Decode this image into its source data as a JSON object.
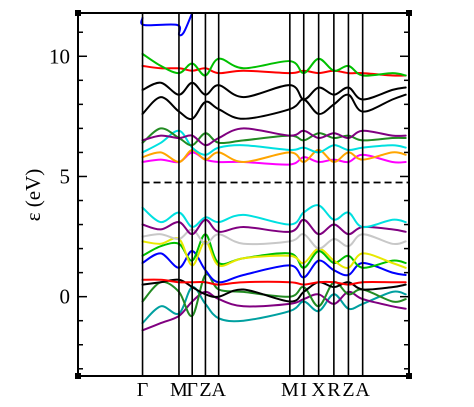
{
  "chart_data": {
    "type": "line",
    "title": "",
    "ylabel": "ε (eV)",
    "xlabel": "",
    "ylim": [
      -3.3,
      11.8
    ],
    "xlim": [
      0,
      1
    ],
    "yticks": [
      0,
      5,
      10
    ],
    "ytick_labels": [
      "0",
      "5",
      "10"
    ],
    "k_points": [
      {
        "label": "Γ",
        "x": 0.195
      },
      {
        "label": "M",
        "x": 0.305
      },
      {
        "label": "Γ",
        "x": 0.345
      },
      {
        "label": "Z",
        "x": 0.385
      },
      {
        "label": "A",
        "x": 0.425
      },
      {
        "label": "M",
        "x": 0.64
      },
      {
        "label": "I",
        "x": 0.682
      },
      {
        "label": "X",
        "x": 0.727
      },
      {
        "label": "R",
        "x": 0.773
      },
      {
        "label": "Z",
        "x": 0.817
      },
      {
        "label": "A",
        "x": 0.86
      }
    ],
    "fermi_level": 4.75,
    "grid": false,
    "series": [
      {
        "color": "#00a0a0",
        "x": [
          0.195,
          0.25,
          0.305,
          0.345,
          0.385,
          0.425,
          0.5,
          0.64,
          0.682,
          0.727,
          0.773,
          0.817,
          0.86,
          0.95,
          0.99
        ],
        "y": [
          -1.1,
          -0.4,
          -0.7,
          0.4,
          -0.3,
          -0.9,
          -1.0,
          -0.6,
          -0.2,
          -0.6,
          0.1,
          -0.5,
          -0.3,
          0.2,
          0.1
        ]
      },
      {
        "color": "#800080",
        "x": [
          0.195,
          0.25,
          0.305,
          0.345,
          0.385,
          0.425,
          0.5,
          0.64,
          0.682,
          0.727,
          0.773,
          0.817,
          0.86,
          0.95,
          0.99
        ],
        "y": [
          -1.4,
          -1.1,
          -0.8,
          -0.2,
          0.2,
          -0.1,
          -0.4,
          -0.3,
          -0.1,
          0.1,
          -0.3,
          0.2,
          -0.1,
          -0.4,
          -0.5
        ]
      },
      {
        "color": "#228b22",
        "x": [
          0.195,
          0.25,
          0.305,
          0.345,
          0.385,
          0.425,
          0.5,
          0.64,
          0.682,
          0.727,
          0.773,
          0.817,
          0.86,
          0.95,
          0.99
        ],
        "y": [
          -0.2,
          0.6,
          0.2,
          -0.8,
          0.9,
          0.3,
          0.2,
          0.0,
          0.4,
          -0.4,
          0.6,
          0.1,
          0.3,
          -0.2,
          -0.1
        ]
      },
      {
        "color": "#000000",
        "x": [
          0.195,
          0.25,
          0.305,
          0.345,
          0.385,
          0.425,
          0.5,
          0.64,
          0.682,
          0.727,
          0.773,
          0.817,
          0.86,
          0.95,
          0.99
        ],
        "y": [
          0.5,
          0.6,
          0.7,
          0.4,
          0.1,
          0.0,
          0.3,
          -0.2,
          0.2,
          0.6,
          0.4,
          0.6,
          0.3,
          0.4,
          0.5
        ]
      },
      {
        "color": "#ff0000",
        "x": [
          0.195,
          0.25,
          0.305,
          0.345,
          0.385,
          0.425,
          0.5,
          0.64,
          0.682,
          0.727,
          0.773,
          0.817,
          0.86,
          0.95,
          0.99
        ],
        "y": [
          0.7,
          0.7,
          0.6,
          0.6,
          0.6,
          0.5,
          0.6,
          0.6,
          0.5,
          0.6,
          0.6,
          0.5,
          0.6,
          0.6,
          0.6
        ]
      },
      {
        "color": "#0000ff",
        "x": [
          0.195,
          0.25,
          0.305,
          0.345,
          0.385,
          0.425,
          0.5,
          0.64,
          0.682,
          0.727,
          0.773,
          0.817,
          0.86,
          0.95,
          0.99
        ],
        "y": [
          1.4,
          1.8,
          1.2,
          1.9,
          1.1,
          0.6,
          0.9,
          1.3,
          0.8,
          1.5,
          1.1,
          0.9,
          1.4,
          1.0,
          0.9
        ]
      },
      {
        "color": "#00c000",
        "x": [
          0.195,
          0.25,
          0.305,
          0.345,
          0.385,
          0.425,
          0.5,
          0.64,
          0.682,
          0.727,
          0.773,
          0.817,
          0.86,
          0.95,
          0.99
        ],
        "y": [
          1.7,
          2.1,
          2.2,
          1.5,
          2.6,
          1.4,
          1.6,
          1.8,
          1.2,
          1.9,
          1.4,
          1.7,
          1.2,
          1.5,
          1.4
        ]
      },
      {
        "color": "#e8e800",
        "x": [
          0.195,
          0.25,
          0.305,
          0.345,
          0.385,
          0.425,
          0.5,
          0.64,
          0.682,
          0.727,
          0.773,
          0.817,
          0.86,
          0.95,
          0.99
        ],
        "y": [
          2.3,
          2.2,
          2.4,
          1.3,
          2.3,
          1.3,
          1.6,
          1.7,
          1.4,
          2.0,
          1.5,
          1.2,
          1.8,
          1.4,
          1.2
        ]
      },
      {
        "color": "#c8c8c8",
        "x": [
          0.195,
          0.25,
          0.305,
          0.345,
          0.385,
          0.425,
          0.5,
          0.64,
          0.682,
          0.727,
          0.773,
          0.817,
          0.86,
          0.95,
          0.99
        ],
        "y": [
          2.5,
          2.6,
          2.4,
          2.8,
          2.2,
          2.6,
          2.2,
          2.3,
          2.6,
          2.0,
          2.4,
          2.1,
          2.6,
          2.2,
          2.3
        ]
      },
      {
        "color": "#800080",
        "x": [
          0.195,
          0.25,
          0.305,
          0.345,
          0.385,
          0.425,
          0.5,
          0.64,
          0.682,
          0.727,
          0.773,
          0.817,
          0.86,
          0.95,
          0.99
        ],
        "y": [
          3.0,
          2.8,
          3.1,
          2.6,
          3.2,
          2.7,
          2.9,
          2.7,
          3.2,
          2.6,
          3.0,
          2.6,
          2.9,
          2.8,
          2.7
        ]
      },
      {
        "color": "#00e0e0",
        "x": [
          0.195,
          0.25,
          0.305,
          0.345,
          0.385,
          0.425,
          0.5,
          0.64,
          0.682,
          0.727,
          0.773,
          0.817,
          0.86,
          0.95,
          0.99
        ],
        "y": [
          3.7,
          3.1,
          3.5,
          2.9,
          3.3,
          3.1,
          3.4,
          3.0,
          3.5,
          3.8,
          3.2,
          3.5,
          2.9,
          3.2,
          3.1
        ]
      },
      {
        "color": "#ff00ff",
        "x": [
          0.195,
          0.25,
          0.305,
          0.345,
          0.385,
          0.425,
          0.5,
          0.64,
          0.682,
          0.727,
          0.773,
          0.817,
          0.86,
          0.95,
          0.99
        ],
        "y": [
          5.6,
          5.7,
          5.6,
          6.0,
          5.7,
          5.6,
          5.6,
          5.5,
          5.8,
          5.6,
          5.7,
          5.6,
          5.9,
          5.6,
          5.6
        ]
      },
      {
        "color": "#ffa500",
        "x": [
          0.195,
          0.25,
          0.305,
          0.345,
          0.385,
          0.425,
          0.5,
          0.64,
          0.682,
          0.727,
          0.773,
          0.817,
          0.86,
          0.95,
          0.99
        ],
        "y": [
          5.8,
          6.0,
          5.6,
          6.1,
          5.7,
          6.0,
          5.6,
          6.0,
          5.6,
          6.1,
          5.6,
          6.0,
          5.7,
          6.0,
          5.9
        ]
      },
      {
        "color": "#00e0e0",
        "x": [
          0.195,
          0.25,
          0.305,
          0.345,
          0.385,
          0.425,
          0.5,
          0.64,
          0.682,
          0.727,
          0.773,
          0.817,
          0.86,
          0.95,
          0.99
        ],
        "y": [
          6.0,
          6.4,
          6.9,
          6.2,
          5.9,
          6.2,
          6.3,
          6.1,
          6.2,
          6.0,
          6.3,
          6.1,
          6.2,
          6.3,
          6.2
        ]
      },
      {
        "color": "#228b22",
        "x": [
          0.195,
          0.25,
          0.305,
          0.345,
          0.385,
          0.425,
          0.5,
          0.64,
          0.682,
          0.727,
          0.773,
          0.817,
          0.86,
          0.95,
          0.99
        ],
        "y": [
          6.4,
          7.0,
          6.6,
          6.3,
          6.8,
          6.4,
          6.5,
          6.7,
          6.5,
          6.8,
          6.6,
          6.7,
          6.5,
          6.6,
          6.6
        ]
      },
      {
        "color": "#800080",
        "x": [
          0.195,
          0.25,
          0.305,
          0.345,
          0.385,
          0.425,
          0.5,
          0.64,
          0.682,
          0.727,
          0.773,
          0.817,
          0.86,
          0.95,
          0.99
        ],
        "y": [
          6.5,
          6.7,
          6.6,
          6.7,
          6.3,
          6.6,
          7.0,
          6.7,
          6.9,
          6.6,
          6.8,
          6.6,
          6.9,
          6.7,
          6.7
        ]
      },
      {
        "color": "#000000",
        "x": [
          0.195,
          0.25,
          0.305,
          0.345,
          0.385,
          0.425,
          0.5,
          0.64,
          0.682,
          0.727,
          0.773,
          0.817,
          0.86,
          0.95,
          0.99
        ],
        "y": [
          7.6,
          8.3,
          7.7,
          7.4,
          8.1,
          7.8,
          7.4,
          7.8,
          8.2,
          7.6,
          8.0,
          8.4,
          7.7,
          8.2,
          8.4
        ]
      },
      {
        "color": "#000000",
        "x": [
          0.195,
          0.25,
          0.305,
          0.345,
          0.385,
          0.425,
          0.5,
          0.64,
          0.682,
          0.727,
          0.773,
          0.817,
          0.86,
          0.95,
          0.99
        ],
        "y": [
          8.6,
          8.9,
          8.4,
          8.9,
          8.4,
          8.8,
          8.3,
          8.8,
          8.2,
          8.7,
          8.4,
          8.7,
          8.2,
          8.6,
          8.7
        ]
      },
      {
        "color": "#ff0000",
        "x": [
          0.195,
          0.25,
          0.305,
          0.345,
          0.385,
          0.425,
          0.5,
          0.64,
          0.682,
          0.727,
          0.773,
          0.817,
          0.86,
          0.95,
          0.99
        ],
        "y": [
          9.6,
          9.5,
          9.5,
          9.4,
          9.5,
          9.3,
          9.4,
          9.3,
          9.4,
          9.3,
          9.4,
          9.3,
          9.3,
          9.2,
          9.2
        ]
      },
      {
        "color": "#00c000",
        "x": [
          0.195,
          0.25,
          0.305,
          0.345,
          0.385,
          0.425,
          0.5,
          0.64,
          0.682,
          0.727,
          0.773,
          0.817,
          0.86,
          0.95,
          0.99
        ],
        "y": [
          10.1,
          9.6,
          9.3,
          9.7,
          9.2,
          9.9,
          9.5,
          9.8,
          9.3,
          9.9,
          9.4,
          9.6,
          9.2,
          9.3,
          9.2
        ]
      },
      {
        "color": "#0000ff",
        "x": [
          0.195,
          0.2,
          0.3,
          0.305,
          0.32,
          0.345
        ],
        "y": [
          11.6,
          11.3,
          11.3,
          10.9,
          11.0,
          11.8
        ]
      }
    ]
  }
}
